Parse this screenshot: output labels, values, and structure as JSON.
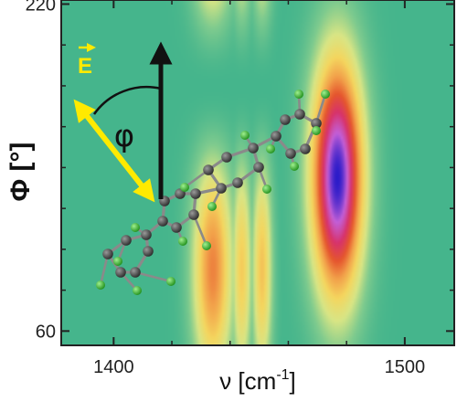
{
  "chart_data": {
    "type": "heatmap",
    "xlabel": "ν [cm",
    "xlabel_sup": "-1",
    "xlabel_end": "]",
    "ylabel": "Φ [°]",
    "xlim": [
      1382,
      1517
    ],
    "ylim": [
      53,
      222
    ],
    "x_ticks": [
      {
        "value": 1400,
        "label": "1400"
      },
      {
        "value": 1500,
        "label": "1500"
      }
    ],
    "y_ticks": [
      {
        "value": 60,
        "label": "60"
      },
      {
        "value": 220,
        "label": "220"
      }
    ],
    "x_minor_ticks": [
      1420,
      1440,
      1460,
      1480
    ],
    "y_minor_ticks": [
      80,
      100,
      120,
      140,
      160,
      180,
      200
    ],
    "background_color": "#45b58c",
    "bands": [
      {
        "center_x": 1434,
        "width_x": 7,
        "phase_deg": 90,
        "peak": 0.55
      },
      {
        "center_x": 1444,
        "width_x": 3.5,
        "phase_deg": 90,
        "peak": 0.4
      },
      {
        "center_x": 1451,
        "width_x": 3.5,
        "phase_deg": 90,
        "peak": 0.42
      }
    ],
    "main_peak": {
      "center_x": 1477,
      "center_phi": 135,
      "width_x": 9,
      "width_phi": 60,
      "peak": 1.0
    },
    "colormap": [
      "#45b58c",
      "#7fcb8e",
      "#d8e585",
      "#f4d65f",
      "#f2a14a",
      "#e5562e",
      "#d7336b",
      "#c35fd6",
      "#2b1bc9"
    ],
    "inset": {
      "vector_label": "E",
      "angle_label": "φ",
      "arrow_color": "#ffea00",
      "atom_carbon_color": "#3a3a3a",
      "atom_h_color": "#39c62f"
    }
  }
}
